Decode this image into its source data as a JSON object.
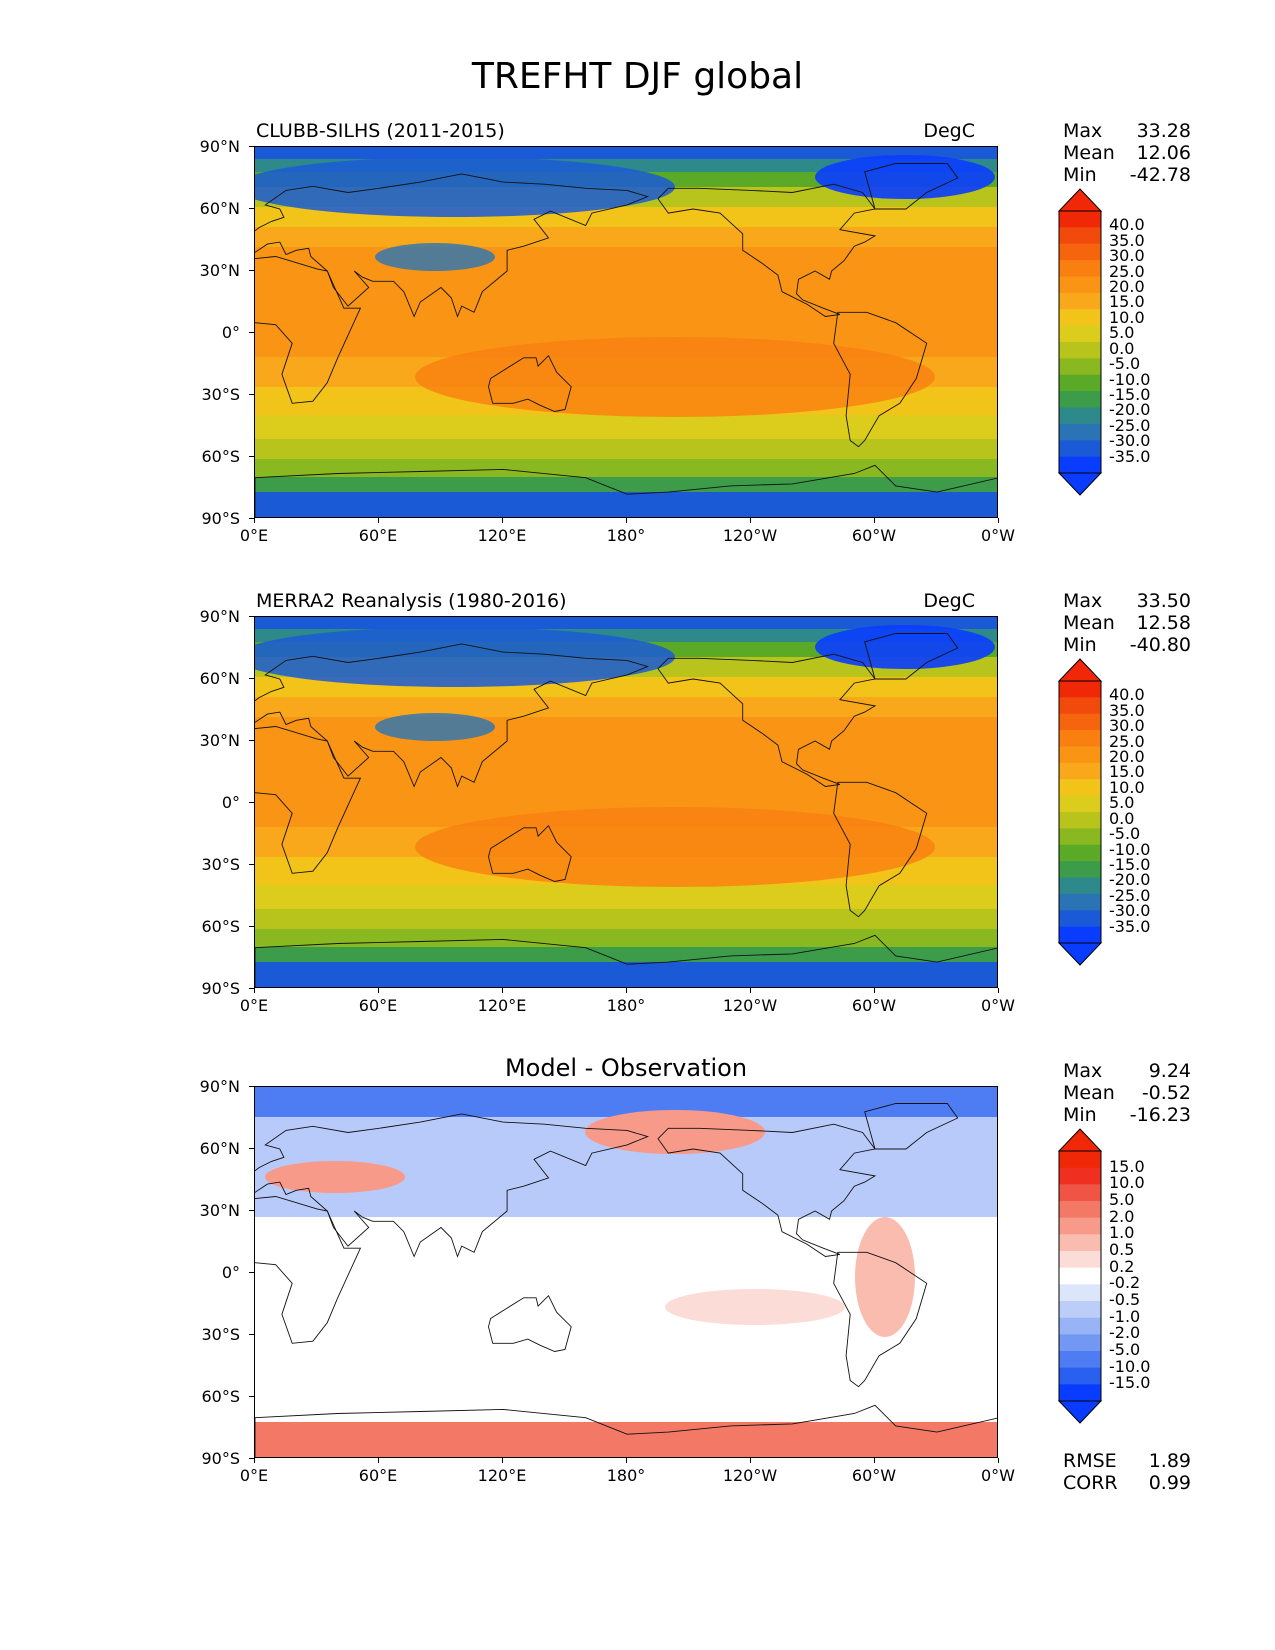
{
  "title": "TREFHT DJF global",
  "lat_labels": [
    "90°N",
    "60°N",
    "30°N",
    "0°",
    "30°S",
    "60°S",
    "90°S"
  ],
  "lon_labels": [
    "0°E",
    "60°E",
    "120°E",
    "180°",
    "120°W",
    "60°W",
    "0°W"
  ],
  "panels": [
    {
      "title": "CLUBB-SILHS (2011-2015)",
      "units": "DegC",
      "stats": {
        "max_label": "Max",
        "max": "33.28",
        "mean_label": "Mean",
        "mean": "12.06",
        "min_label": "Min",
        "min": "-42.78"
      },
      "colorbar": [
        "40.0",
        "35.0",
        "30.0",
        "25.0",
        "20.0",
        "15.0",
        "10.0",
        "5.0",
        "0.0",
        "-5.0",
        "-10.0",
        "-15.0",
        "-20.0",
        "-25.0",
        "-30.0",
        "-35.0"
      ]
    },
    {
      "title": "MERRA2 Reanalysis (1980-2016)",
      "units": "DegC",
      "stats": {
        "max_label": "Max",
        "max": "33.50",
        "mean_label": "Mean",
        "mean": "12.58",
        "min_label": "Min",
        "min": "-40.80"
      },
      "colorbar": [
        "40.0",
        "35.0",
        "30.0",
        "25.0",
        "20.0",
        "15.0",
        "10.0",
        "5.0",
        "0.0",
        "-5.0",
        "-10.0",
        "-15.0",
        "-20.0",
        "-25.0",
        "-30.0",
        "-35.0"
      ]
    },
    {
      "title": "Model - Observation",
      "stats": {
        "max_label": "Max",
        "max": "9.24",
        "mean_label": "Mean",
        "mean": "-0.52",
        "min_label": "Min",
        "min": "-16.23"
      },
      "colorbar": [
        "15.0",
        "10.0",
        "5.0",
        "2.0",
        "1.0",
        "0.5",
        "0.2",
        "-0.2",
        "-0.5",
        "-1.0",
        "-2.0",
        "-5.0",
        "-10.0",
        "-15.0"
      ],
      "rmse_label": "RMSE",
      "rmse": "1.89",
      "corr_label": "CORR",
      "corr": "0.99"
    }
  ],
  "colors": {
    "temp_scale": [
      "#0a3cff",
      "#1a5ad6",
      "#2a74b5",
      "#2e8a8a",
      "#3c9c4a",
      "#5aaa28",
      "#8ab820",
      "#b8c41c",
      "#dccc1c",
      "#f2c41a",
      "#f8a81a",
      "#fa9414",
      "#f98010",
      "#f6640e",
      "#f24a0c",
      "#f02808"
    ],
    "diff_scale": [
      "#0a3cff",
      "#2a60f0",
      "#4e7cf2",
      "#7298f4",
      "#98b4f6",
      "#bccef8",
      "#dce6fb",
      "#ffffff",
      "#fcdcd6",
      "#fbbcb0",
      "#f89a8a",
      "#f47866",
      "#f05444",
      "#ef3020",
      "#f02808"
    ]
  }
}
